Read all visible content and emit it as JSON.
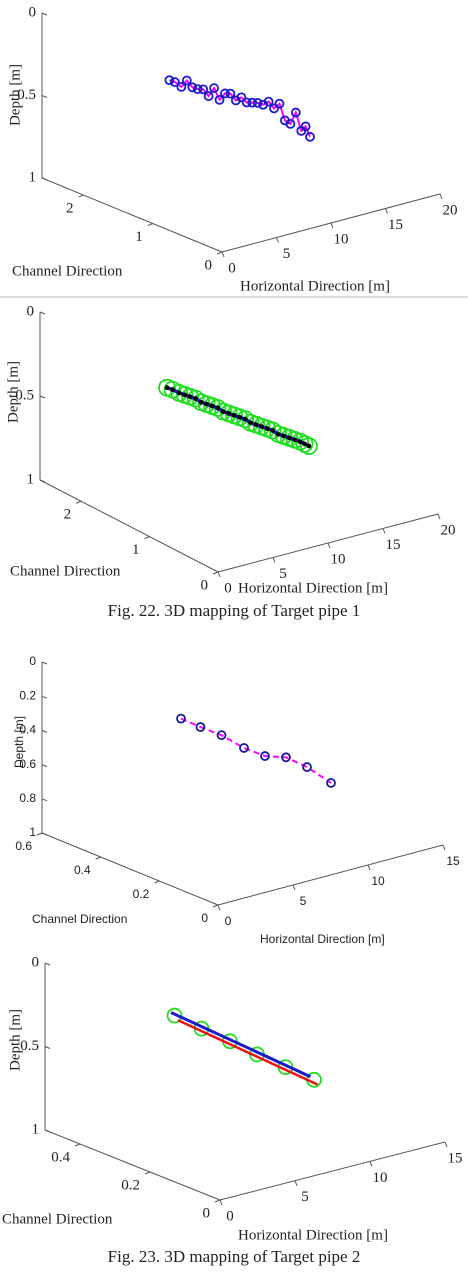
{
  "chart_data": [
    {
      "type": "scatter3d",
      "xlabel": "Horizontal Direction [m]",
      "ylabel": "Channel Direction",
      "zlabel": "Depth [m]",
      "xlim": [
        0,
        20
      ],
      "xticks": [
        0,
        5,
        10,
        15,
        20
      ],
      "ylim": [
        0,
        2.6
      ],
      "yticks": [
        0,
        1,
        2
      ],
      "zlim": [
        0,
        1
      ],
      "zticks": [
        0,
        0.5,
        1
      ],
      "zreversed": true,
      "series": [
        {
          "color": "#ff00ff",
          "line": true,
          "line_width": 2,
          "marker_edge": "#1a1acc",
          "marker_fill": "none",
          "marker_size": 4,
          "x": [
            4.7,
            5.2,
            5.8,
            6.3,
            6.8,
            7.3,
            7.8,
            8.3,
            8.8,
            9.3,
            9.8,
            10.3,
            10.8,
            11.3,
            11.8,
            12.3,
            12.8,
            13.3,
            13.8,
            14.3,
            14.8,
            15.3,
            15.8,
            16.3,
            16.8,
            17.2,
            17.6
          ],
          "y": [
            1.5,
            1.5,
            1.5,
            1.5,
            1.5,
            1.5,
            1.5,
            1.5,
            1.5,
            1.5,
            1.5,
            1.5,
            1.5,
            1.5,
            1.5,
            1.5,
            1.5,
            1.5,
            1.5,
            1.5,
            1.5,
            1.5,
            1.5,
            1.5,
            1.5,
            1.5,
            1.5
          ],
          "z": [
            0.3,
            0.32,
            0.36,
            0.33,
            0.38,
            0.4,
            0.41,
            0.46,
            0.42,
            0.5,
            0.47,
            0.48,
            0.53,
            0.52,
            0.56,
            0.57,
            0.58,
            0.6,
            0.59,
            0.64,
            0.62,
            0.73,
            0.76,
            0.7,
            0.82,
            0.8,
            0.87
          ]
        }
      ]
    },
    {
      "type": "scatter3d",
      "xlabel": "Horizontal Direction [m]",
      "ylabel": "Channel Direction",
      "zlabel": "Depth [m]",
      "xlim": [
        0,
        20
      ],
      "xticks": [
        0,
        5,
        10,
        15,
        20
      ],
      "ylim": [
        0,
        2.6
      ],
      "yticks": [
        0,
        1,
        2
      ],
      "zlim": [
        0,
        1
      ],
      "zticks": [
        0,
        0.5,
        1
      ],
      "zreversed": true,
      "series": [
        {
          "color": "#22dd22",
          "line": false,
          "marker_edge": "#22dd22",
          "marker_fill": "none",
          "marker_size": 8,
          "x": [
            4.7,
            5.2,
            5.8,
            6.3,
            6.8,
            7.3,
            7.8,
            8.3,
            8.8,
            9.3,
            9.8,
            10.3,
            10.8,
            11.3,
            11.8,
            12.3,
            12.8,
            13.3,
            13.8,
            14.3,
            14.8,
            15.3,
            15.8,
            16.3,
            16.8,
            17.2,
            17.6
          ],
          "y": [
            1.5,
            1.5,
            1.5,
            1.5,
            1.5,
            1.5,
            1.5,
            1.5,
            1.5,
            1.5,
            1.5,
            1.5,
            1.5,
            1.5,
            1.5,
            1.5,
            1.5,
            1.5,
            1.5,
            1.5,
            1.5,
            1.5,
            1.5,
            1.5,
            1.5,
            1.5,
            1.5
          ],
          "z": [
            0.3,
            0.32,
            0.35,
            0.37,
            0.39,
            0.41,
            0.44,
            0.46,
            0.48,
            0.5,
            0.53,
            0.55,
            0.57,
            0.59,
            0.61,
            0.64,
            0.66,
            0.68,
            0.7,
            0.72,
            0.75,
            0.77,
            0.79,
            0.81,
            0.83,
            0.85,
            0.87
          ]
        },
        {
          "color": "#1a1acc",
          "line": true,
          "line_width": 3.5,
          "marker_edge": "#000000",
          "marker_fill": "#000000",
          "marker_size": 1.5,
          "x": [
            4.7,
            5.2,
            5.8,
            6.3,
            6.8,
            7.3,
            7.8,
            8.3,
            8.8,
            9.3,
            9.8,
            10.3,
            10.8,
            11.3,
            11.8,
            12.3,
            12.8,
            13.3,
            13.8,
            14.3,
            14.8,
            15.3,
            15.8,
            16.3,
            16.8,
            17.2,
            17.6
          ],
          "y": [
            1.5,
            1.5,
            1.5,
            1.5,
            1.5,
            1.5,
            1.5,
            1.5,
            1.5,
            1.5,
            1.5,
            1.5,
            1.5,
            1.5,
            1.5,
            1.5,
            1.5,
            1.5,
            1.5,
            1.5,
            1.5,
            1.5,
            1.5,
            1.5,
            1.5,
            1.5,
            1.5
          ],
          "z": [
            0.3,
            0.32,
            0.35,
            0.37,
            0.39,
            0.41,
            0.44,
            0.46,
            0.48,
            0.5,
            0.53,
            0.55,
            0.57,
            0.59,
            0.61,
            0.64,
            0.66,
            0.68,
            0.7,
            0.72,
            0.75,
            0.77,
            0.79,
            0.81,
            0.83,
            0.85,
            0.87
          ]
        }
      ]
    },
    {
      "type": "scatter3d",
      "xlabel": "Horizontal Direction [m]",
      "ylabel": "Channel Direction",
      "zlabel": "Depth [m]",
      "xlim": [
        0,
        15
      ],
      "xticks": [
        0,
        5,
        10,
        15
      ],
      "ylim": [
        0,
        0.6
      ],
      "yticks": [
        0,
        0.2,
        0.4,
        0.6
      ],
      "zlim": [
        0,
        1
      ],
      "zticks": [
        0,
        0.2,
        0.4,
        0.6,
        0.8,
        1
      ],
      "zreversed": true,
      "series": [
        {
          "color": "#ff00ff",
          "line": true,
          "dashed": true,
          "line_width": 2,
          "marker_edge": "#1a1a99",
          "marker_fill": "none",
          "marker_size": 4,
          "x": [
            3.4,
            4.7,
            6.1,
            7.6,
            9.0,
            10.4,
            11.8,
            13.4
          ],
          "y": [
            0.3,
            0.3,
            0.3,
            0.3,
            0.3,
            0.3,
            0.3,
            0.3
          ],
          "z": [
            0.2,
            0.28,
            0.36,
            0.47,
            0.55,
            0.59,
            0.68,
            0.81
          ]
        }
      ]
    },
    {
      "type": "scatter3d",
      "xlabel": "Horizontal Direction [m]",
      "ylabel": "Channel Direction",
      "zlabel": "Depth [m]",
      "xlim": [
        0,
        15
      ],
      "xticks": [
        0,
        5,
        10,
        15
      ],
      "ylim": [
        0,
        0.5
      ],
      "yticks": [
        0,
        0.2,
        0.4
      ],
      "zlim": [
        0,
        1
      ],
      "zticks": [
        0,
        0.5,
        1
      ],
      "zreversed": true,
      "series": [
        {
          "color": "#22dd22",
          "line": false,
          "marker_edge": "#22dd22",
          "marker_fill": "none",
          "marker_size": 7,
          "x": [
            2.8,
            4.6,
            6.5,
            8.3,
            10.2,
            12.1
          ],
          "y": [
            0.25,
            0.25,
            0.25,
            0.25,
            0.25,
            0.25
          ],
          "z": [
            0.17,
            0.29,
            0.41,
            0.53,
            0.65,
            0.77
          ]
        },
        {
          "color": "#ee1111",
          "line": true,
          "line_width": 2.5,
          "x": [
            2.8,
            12.1
          ],
          "y": [
            0.24,
            0.24
          ],
          "z": [
            0.19,
            0.79
          ]
        },
        {
          "color": "#1a1acc",
          "line": true,
          "line_width": 3,
          "x": [
            2.8,
            12.1
          ],
          "y": [
            0.26,
            0.26
          ],
          "z": [
            0.16,
            0.76
          ]
        }
      ]
    }
  ],
  "captions": [
    "Fig. 22. 3D mapping of Target pipe 1",
    "Fig. 23. 3D mapping of Target pipe 2"
  ]
}
